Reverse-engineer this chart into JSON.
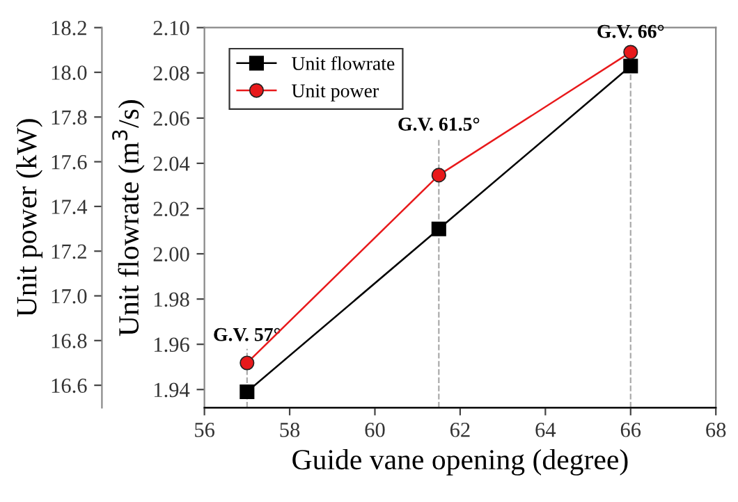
{
  "chart_data": {
    "type": "line",
    "xlabel": "Guide vane opening (degree)",
    "ylabel": "Unit flowrate (m$^{3}$/s)",
    "y2label": "Unit power (kW)",
    "x": [
      57,
      61.5,
      66
    ],
    "series": [
      {
        "name": "Unit flowrate",
        "color": "#000000",
        "marker": "square",
        "values": [
          1.939,
          2.011,
          2.083
        ]
      },
      {
        "name": "Unit power",
        "color": "#e8191b",
        "marker": "circle",
        "axis": "y2",
        "values": [
          16.7,
          17.54,
          18.09
        ]
      }
    ],
    "xlim": [
      56,
      68
    ],
    "xticks": [
      56,
      58,
      60,
      62,
      64,
      66,
      68
    ],
    "ylim": [
      1.932,
      2.1
    ],
    "yticks": [
      {
        "value": 1.94,
        "label": "1.94"
      },
      {
        "value": 1.96,
        "label": "1.96"
      },
      {
        "value": 1.98,
        "label": "1.98"
      },
      {
        "value": 2.0,
        "label": "2.00"
      },
      {
        "value": 2.02,
        "label": "2.02"
      },
      {
        "value": 2.04,
        "label": "2.04"
      },
      {
        "value": 2.06,
        "label": "2.06"
      },
      {
        "value": 2.08,
        "label": "2.08"
      },
      {
        "value": 2.1,
        "label": "2.10"
      }
    ],
    "y2lim": [
      16.5,
      18.2
    ],
    "y2ticks": [
      {
        "value": 16.6,
        "label": "16.6"
      },
      {
        "value": 16.8,
        "label": "16.8"
      },
      {
        "value": 17.0,
        "label": "17.0"
      },
      {
        "value": 17.2,
        "label": "17.2"
      },
      {
        "value": 17.4,
        "label": "17.4"
      },
      {
        "value": 17.6,
        "label": "17.6"
      },
      {
        "value": 17.8,
        "label": "17.8"
      },
      {
        "value": 18.0,
        "label": "18.0"
      },
      {
        "value": 18.2,
        "label": "18.2"
      }
    ],
    "ref_lines": [
      {
        "axis": "x",
        "value": 57,
        "color": "#aaaaaa",
        "line_style": "dashed"
      },
      {
        "axis": "x",
        "value": 61.5,
        "color": "#aaaaaa",
        "line_style": "dashed"
      },
      {
        "axis": "x",
        "value": 66,
        "color": "#aaaaaa",
        "line_style": "dashed"
      }
    ],
    "annotations": [
      {
        "text": "G.V. 57°",
        "x": 57,
        "y": 1.958
      },
      {
        "text": "G.V. 61.5°",
        "x": 61.5,
        "y": 2.051
      },
      {
        "text": "G.V. 66°",
        "x": 66,
        "y": 2.092
      }
    ],
    "legend": "top left",
    "grid": false
  }
}
